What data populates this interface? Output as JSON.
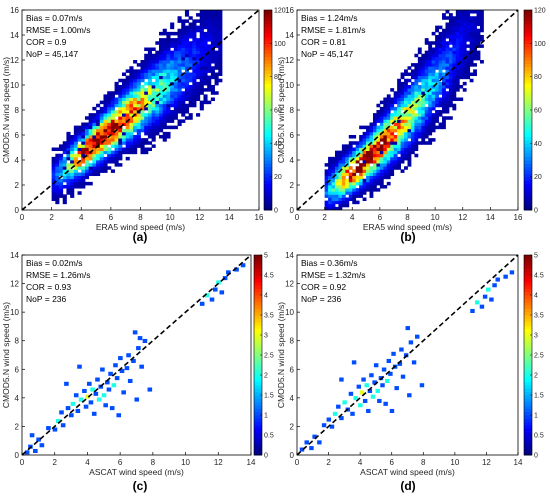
{
  "figure": {
    "panels": [
      {
        "id": "a",
        "caption": "(a)",
        "stats": [
          "Bias = 0.07m/s",
          "RMSE = 1.00m/s",
          "COR = 0.9",
          "NoP = 45,147"
        ]
      },
      {
        "id": "b",
        "caption": "(b)",
        "stats": [
          "Bias = 1.24m/s",
          "RMSE = 1.81m/s",
          "COR = 0.81",
          "NoP = 45,147"
        ]
      },
      {
        "id": "c",
        "caption": "(c)",
        "stats": [
          "Bias = 0.02m/s",
          "RMSE = 1.26m/s",
          "COR = 0.93",
          "NoP = 236"
        ]
      },
      {
        "id": "d",
        "caption": "(d)",
        "stats": [
          "Bias = 0.36m/s",
          "RMSE = 1.32m/s",
          "COR = 0.92",
          "NoP = 236"
        ]
      }
    ]
  },
  "chart_data": [
    {
      "type": "heatmap",
      "panel": "a",
      "xlabel": "ERA5 wind speed (m/s)",
      "ylabel": "CMOD5.N wind speed (m/s)",
      "xlim": [
        0,
        16
      ],
      "ylim": [
        0,
        16
      ],
      "xticks": [
        0,
        2,
        4,
        6,
        8,
        10,
        12,
        14,
        16
      ],
      "yticks": [
        0,
        2,
        4,
        6,
        8,
        10,
        12,
        14,
        16
      ],
      "colorbar": {
        "min": 0,
        "max": 120,
        "ticks": [
          0,
          20,
          40,
          60,
          80,
          100,
          120
        ],
        "colormap": "jet"
      },
      "reference_line": "y = x (dashed black)",
      "density_center": [
        4.8,
        5.2
      ],
      "density_peak": 120
    },
    {
      "type": "heatmap",
      "panel": "b",
      "xlabel": "ERA5 wind speed (m/s)",
      "ylabel": "CMOD5.N wind speed (m/s)",
      "xlim": [
        0,
        16
      ],
      "ylim": [
        0,
        16
      ],
      "xticks": [
        0,
        2,
        4,
        6,
        8,
        10,
        12,
        14,
        16
      ],
      "yticks": [
        0,
        2,
        4,
        6,
        8,
        10,
        12,
        14,
        16
      ],
      "colorbar": {
        "min": 0,
        "max": 120,
        "ticks": [
          0,
          20,
          40,
          60,
          80,
          100,
          120
        ],
        "colormap": "jet"
      },
      "reference_line": "y = x (dashed black)",
      "density_center": [
        4.5,
        3.5
      ],
      "density_peak": 120
    },
    {
      "type": "heatmap",
      "panel": "c",
      "xlabel": "ASCAT wind speed (m/s)",
      "ylabel": "CMOD5.N wind speed (m/s)",
      "xlim": [
        0,
        14
      ],
      "ylim": [
        0,
        14
      ],
      "xticks": [
        0,
        2,
        4,
        6,
        8,
        10,
        12,
        14
      ],
      "yticks": [
        0,
        2,
        4,
        6,
        8,
        10,
        12,
        14
      ],
      "colorbar": {
        "min": 0,
        "max": 5,
        "ticks": [
          0,
          0.5,
          1,
          1.5,
          2,
          2.5,
          3,
          3.5,
          4,
          4.5,
          5
        ],
        "colormap": "jet"
      },
      "reference_line": "y = x (dashed black)",
      "points": [
        [
          0.3,
          0.2,
          1
        ],
        [
          0.5,
          0.6,
          1
        ],
        [
          0.8,
          0.3,
          1
        ],
        [
          1.0,
          1.1,
          1
        ],
        [
          1.2,
          0.7,
          1
        ],
        [
          0.6,
          1.4,
          1
        ],
        [
          1.6,
          1.9,
          1
        ],
        [
          2.0,
          1.8,
          1
        ],
        [
          2.2,
          2.4,
          2
        ],
        [
          2.4,
          3.0,
          1
        ],
        [
          2.5,
          2.1,
          1
        ],
        [
          2.8,
          3.3,
          1
        ],
        [
          3.0,
          2.8,
          1
        ],
        [
          3.1,
          3.6,
          2
        ],
        [
          3.3,
          4.2,
          1
        ],
        [
          3.4,
          3.1,
          1
        ],
        [
          3.6,
          3.9,
          2
        ],
        [
          3.8,
          4.5,
          1
        ],
        [
          3.9,
          3.4,
          1
        ],
        [
          4.0,
          4.1,
          3
        ],
        [
          4.1,
          5.0,
          1
        ],
        [
          4.2,
          3.7,
          1
        ],
        [
          4.3,
          4.6,
          2
        ],
        [
          4.4,
          2.9,
          1
        ],
        [
          4.5,
          4.3,
          1
        ],
        [
          4.6,
          5.3,
          1
        ],
        [
          4.7,
          3.9,
          2
        ],
        [
          4.8,
          4.8,
          1
        ],
        [
          4.9,
          6.0,
          1
        ],
        [
          5.0,
          4.2,
          2
        ],
        [
          5.1,
          3.5,
          1
        ],
        [
          5.2,
          5.1,
          1
        ],
        [
          5.3,
          4.6,
          1
        ],
        [
          5.4,
          5.7,
          1
        ],
        [
          5.5,
          3.3,
          1
        ],
        [
          5.6,
          4.9,
          2
        ],
        [
          5.7,
          6.3,
          1
        ],
        [
          5.8,
          5.4,
          1
        ],
        [
          5.9,
          2.8,
          1
        ],
        [
          6.0,
          6.8,
          1
        ],
        [
          6.1,
          5.9,
          1
        ],
        [
          6.2,
          4.4,
          1
        ],
        [
          6.4,
          6.1,
          1
        ],
        [
          6.5,
          7.0,
          1
        ],
        [
          6.6,
          5.2,
          1
        ],
        [
          6.8,
          6.6,
          1
        ],
        [
          7.0,
          3.9,
          1
        ],
        [
          7.1,
          7.5,
          1
        ],
        [
          7.3,
          6.2,
          1
        ],
        [
          7.5,
          8.0,
          1
        ],
        [
          7.8,
          4.6,
          1
        ],
        [
          3.5,
          6.2,
          1
        ],
        [
          2.7,
          5.0,
          1
        ],
        [
          6.9,
          8.6,
          1
        ],
        [
          7.2,
          8.2,
          1
        ],
        [
          11.0,
          10.6,
          1
        ],
        [
          11.3,
          11.2,
          2
        ],
        [
          11.6,
          10.9,
          1
        ],
        [
          11.8,
          11.6,
          1
        ],
        [
          12.0,
          12.1,
          2
        ],
        [
          12.2,
          11.4,
          1
        ],
        [
          12.4,
          12.4,
          1
        ],
        [
          12.6,
          12.8,
          1
        ],
        [
          13.1,
          13.0,
          1
        ],
        [
          13.5,
          13.3,
          1
        ]
      ]
    },
    {
      "type": "heatmap",
      "panel": "d",
      "xlabel": "ASCAT wind speed (m/s)",
      "ylabel": "CMOD5.N wind speed (m/s)",
      "xlim": [
        0,
        14
      ],
      "ylim": [
        0,
        14
      ],
      "xticks": [
        0,
        2,
        4,
        6,
        8,
        10,
        12,
        14
      ],
      "yticks": [
        0,
        2,
        4,
        6,
        8,
        10,
        12,
        14
      ],
      "colorbar": {
        "min": 0,
        "max": 5,
        "ticks": [
          0,
          0.5,
          1,
          1.5,
          2,
          2.5,
          3,
          3.5,
          4,
          4.5,
          5
        ],
        "colormap": "jet"
      },
      "reference_line": "y = x (dashed black)",
      "points": [
        [
          0.3,
          0.4,
          1
        ],
        [
          0.6,
          0.9,
          1
        ],
        [
          0.9,
          0.5,
          1
        ],
        [
          1.1,
          1.3,
          1
        ],
        [
          1.4,
          0.9,
          1
        ],
        [
          1.7,
          2.1,
          1
        ],
        [
          2.0,
          2.5,
          1
        ],
        [
          2.2,
          2.0,
          1
        ],
        [
          2.4,
          2.9,
          2
        ],
        [
          2.6,
          3.4,
          1
        ],
        [
          2.8,
          2.6,
          1
        ],
        [
          3.0,
          3.7,
          2
        ],
        [
          3.2,
          3.2,
          1
        ],
        [
          3.4,
          4.3,
          1
        ],
        [
          3.5,
          2.9,
          1
        ],
        [
          3.7,
          4.0,
          2
        ],
        [
          3.9,
          4.8,
          1
        ],
        [
          4.0,
          3.5,
          2
        ],
        [
          4.1,
          4.4,
          3
        ],
        [
          4.2,
          5.3,
          1
        ],
        [
          4.3,
          3.8,
          1
        ],
        [
          4.4,
          4.9,
          2
        ],
        [
          4.5,
          3.1,
          1
        ],
        [
          4.6,
          4.5,
          1
        ],
        [
          4.7,
          5.6,
          1
        ],
        [
          4.8,
          4.1,
          2
        ],
        [
          4.9,
          5.1,
          1
        ],
        [
          5.0,
          6.3,
          1
        ],
        [
          5.1,
          4.5,
          2
        ],
        [
          5.2,
          3.8,
          1
        ],
        [
          5.3,
          5.4,
          1
        ],
        [
          5.4,
          4.9,
          1
        ],
        [
          5.5,
          6.0,
          1
        ],
        [
          5.6,
          3.6,
          1
        ],
        [
          5.7,
          5.2,
          2
        ],
        [
          5.8,
          6.6,
          1
        ],
        [
          5.9,
          5.7,
          1
        ],
        [
          6.0,
          3.1,
          1
        ],
        [
          6.1,
          7.1,
          1
        ],
        [
          6.2,
          6.2,
          1
        ],
        [
          6.3,
          4.7,
          1
        ],
        [
          6.5,
          6.4,
          1
        ],
        [
          6.6,
          7.4,
          1
        ],
        [
          6.7,
          5.5,
          1
        ],
        [
          6.9,
          7.0,
          1
        ],
        [
          7.1,
          4.2,
          1
        ],
        [
          7.2,
          7.9,
          1
        ],
        [
          7.4,
          6.5,
          1
        ],
        [
          7.6,
          8.3,
          1
        ],
        [
          7.9,
          4.9,
          1
        ],
        [
          3.6,
          6.5,
          1
        ],
        [
          2.8,
          5.3,
          1
        ],
        [
          7.0,
          8.9,
          1
        ],
        [
          11.1,
          10.1,
          1
        ],
        [
          11.4,
          10.7,
          2
        ],
        [
          11.7,
          10.4,
          1
        ],
        [
          11.9,
          11.1,
          1
        ],
        [
          12.1,
          11.6,
          2
        ],
        [
          12.3,
          10.9,
          1
        ],
        [
          12.5,
          11.9,
          1
        ],
        [
          12.7,
          12.3,
          1
        ],
        [
          13.2,
          12.5,
          1
        ],
        [
          13.6,
          12.8,
          1
        ]
      ]
    }
  ]
}
